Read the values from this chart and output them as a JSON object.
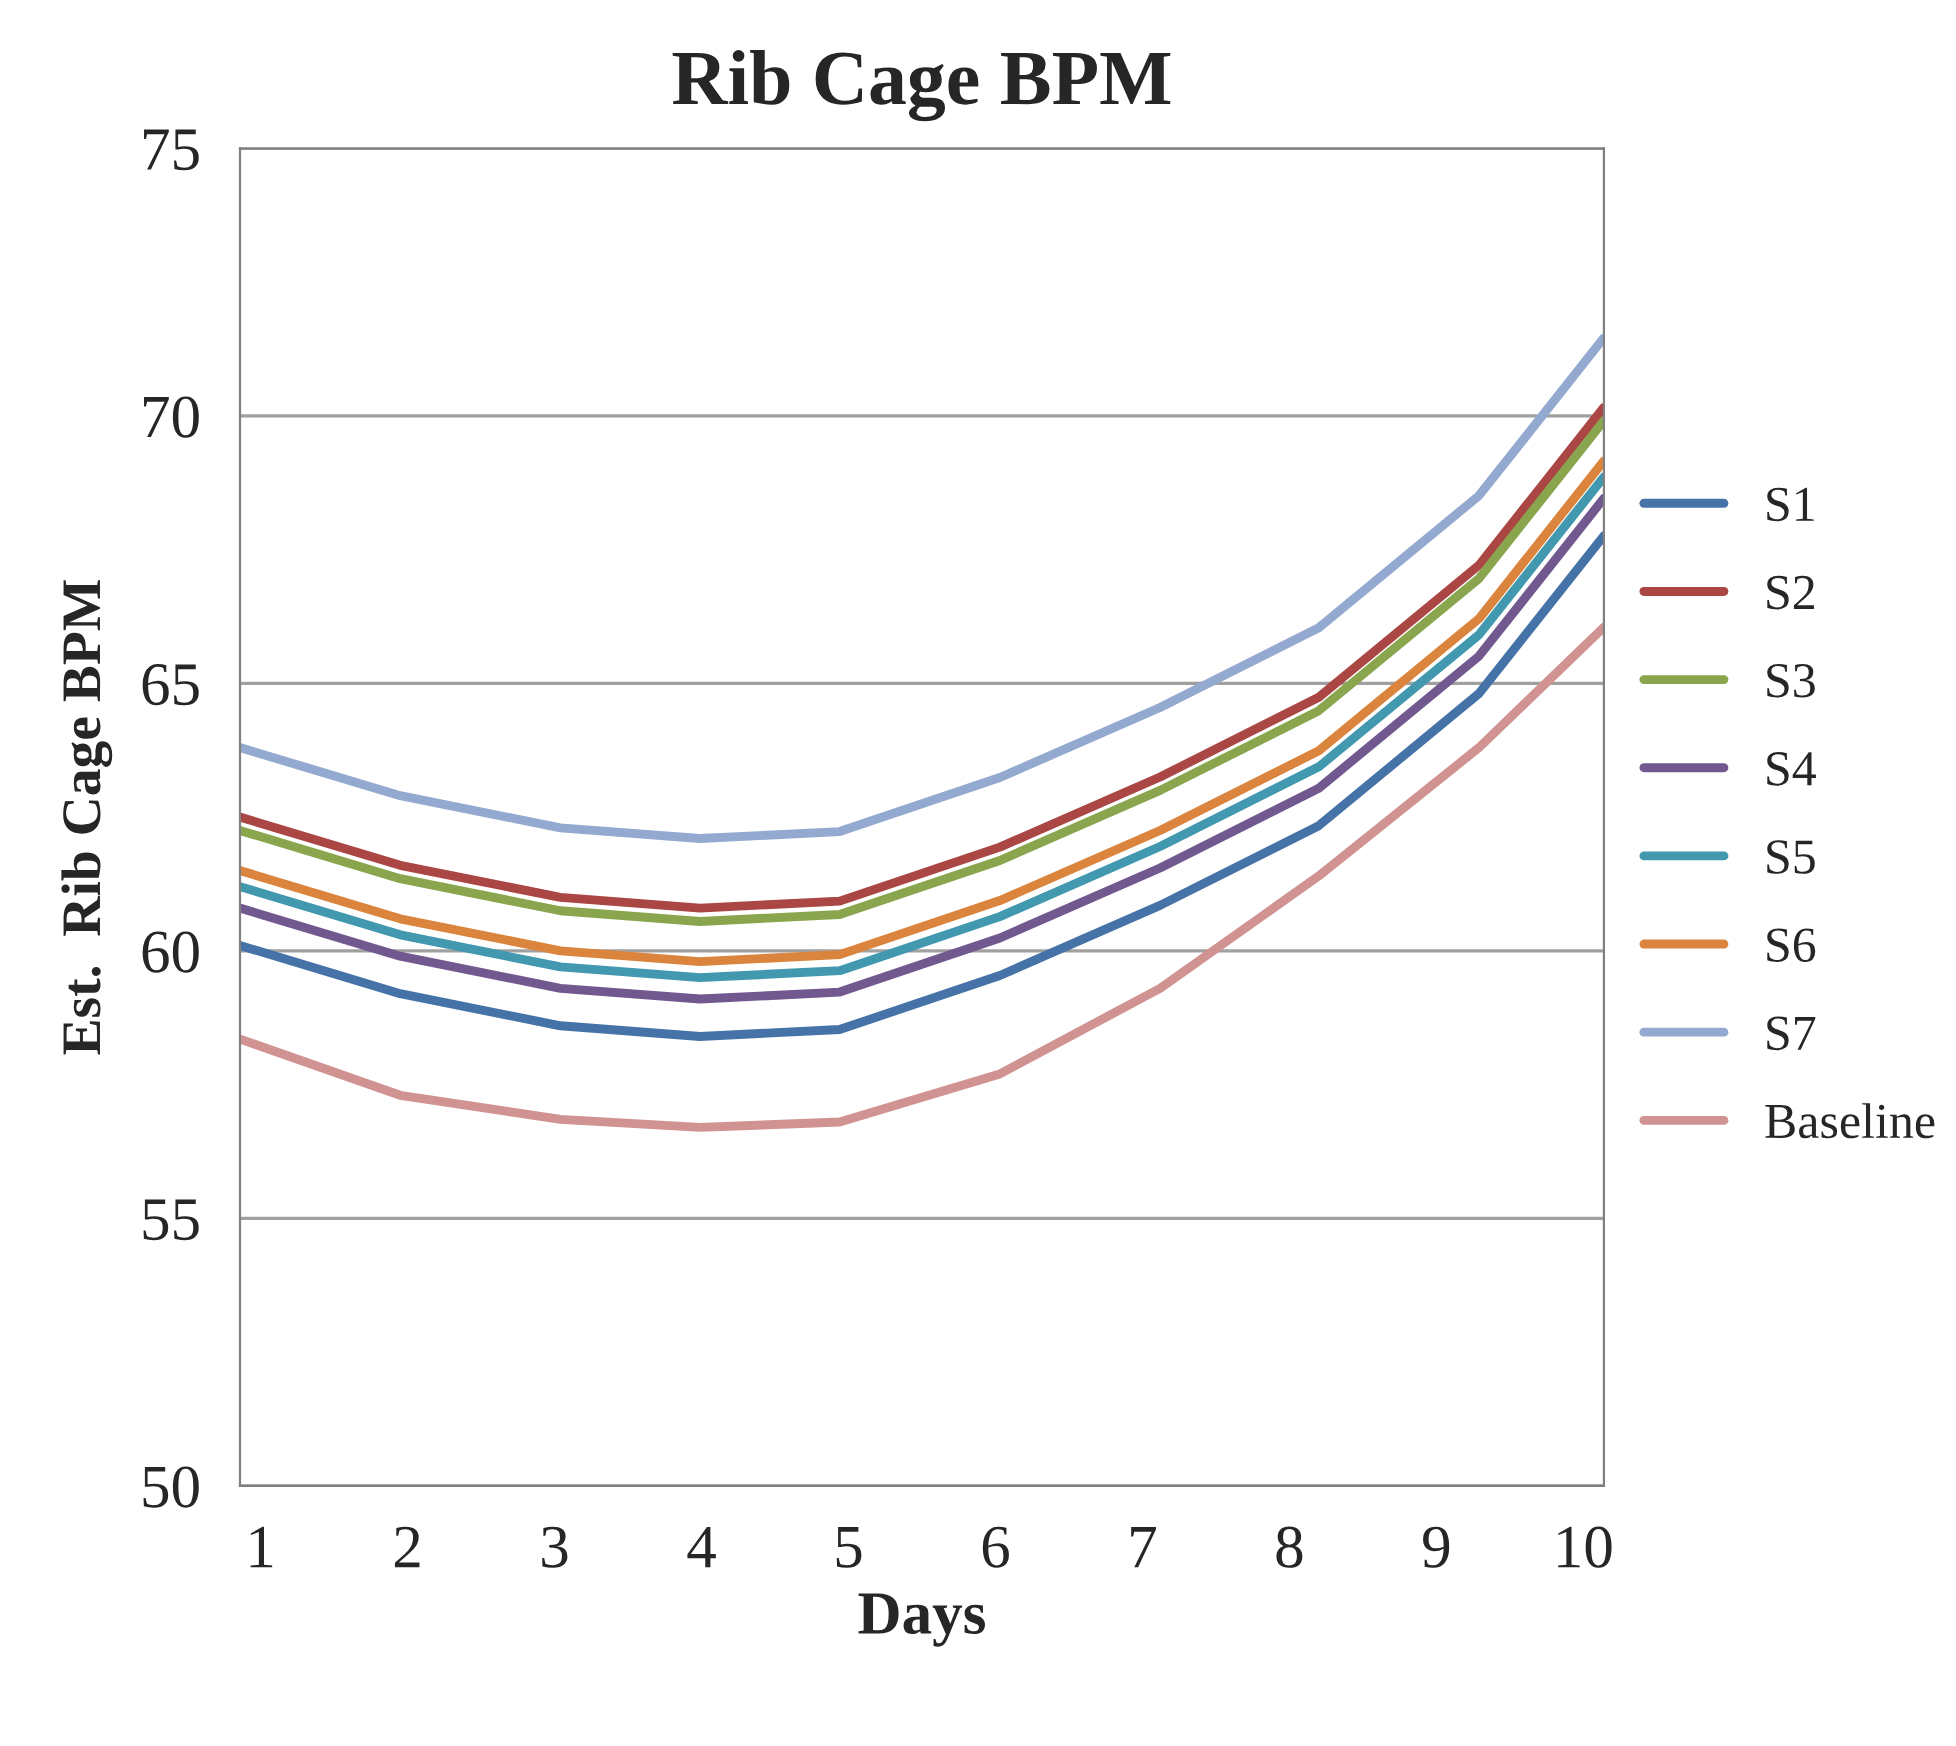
{
  "chart_data": {
    "type": "line",
    "title": "Rib Cage BPM",
    "xlabel": "Days",
    "ylabel": "Est.  Rib Cage BPM",
    "x": [
      0.86,
      1.95,
      3.04,
      3.99,
      4.94,
      6.03,
      7.12,
      8.2,
      9.29,
      10.14
    ],
    "xlim": [
      0.86,
      10.14
    ],
    "xticks": [
      1,
      2,
      3,
      4,
      5,
      6,
      7,
      8,
      9,
      10
    ],
    "ylim": [
      50,
      75
    ],
    "yticks": [
      50,
      55,
      60,
      65,
      70,
      75
    ],
    "grid": "y",
    "legend": "right",
    "marker": "none",
    "line_style": "solid",
    "series": [
      {
        "name": "S1",
        "color": "#4572a7",
        "values": [
          60.1,
          59.2,
          58.6,
          58.4,
          58.53,
          59.54,
          60.85,
          62.34,
          64.81,
          67.76
        ]
      },
      {
        "name": "S2",
        "color": "#aa4643",
        "values": [
          62.5,
          61.6,
          61.0,
          60.8,
          60.93,
          61.94,
          63.25,
          64.74,
          67.21,
          70.16
        ]
      },
      {
        "name": "S3",
        "color": "#89a54e",
        "values": [
          62.25,
          61.35,
          60.75,
          60.55,
          60.68,
          61.69,
          63.0,
          64.49,
          66.96,
          69.91
        ]
      },
      {
        "name": "S4",
        "color": "#71588f",
        "values": [
          60.8,
          59.9,
          59.3,
          59.1,
          59.23,
          60.24,
          61.55,
          63.04,
          65.51,
          68.46
        ]
      },
      {
        "name": "S5",
        "color": "#4198af",
        "values": [
          61.2,
          60.3,
          59.7,
          59.5,
          59.63,
          60.64,
          61.95,
          63.44,
          65.91,
          68.86
        ]
      },
      {
        "name": "S6",
        "color": "#db843d",
        "values": [
          61.5,
          60.6,
          60.0,
          59.8,
          59.93,
          60.94,
          62.25,
          63.74,
          66.21,
          69.16
        ]
      },
      {
        "name": "S7",
        "color": "#93a9cf",
        "values": [
          63.8,
          62.9,
          62.3,
          62.1,
          62.23,
          63.24,
          64.55,
          66.04,
          68.51,
          71.46
        ]
      },
      {
        "name": "Baseline",
        "color": "#d19392",
        "values": [
          58.35,
          57.3,
          56.85,
          56.7,
          56.8,
          57.7,
          59.3,
          61.4,
          63.8,
          66.05
        ]
      }
    ]
  }
}
